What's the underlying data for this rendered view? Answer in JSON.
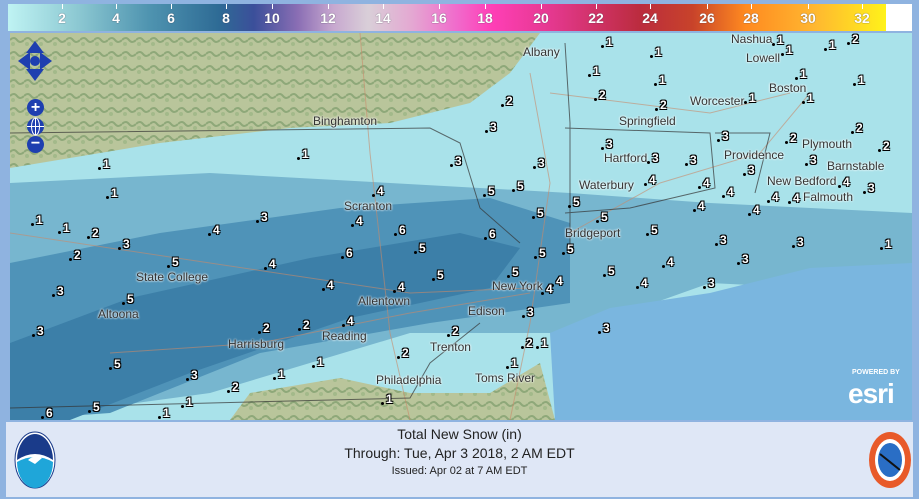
{
  "legend": {
    "unit_ticks": [
      "2",
      "4",
      "6",
      "8",
      "10",
      "12",
      "14",
      "16",
      "18",
      "20",
      "22",
      "24",
      "26",
      "28",
      "30",
      "32"
    ],
    "colors": {
      "low": "#bff3f3",
      "mid": "#2e6b95",
      "high": "#fff21a"
    }
  },
  "map_controls": {
    "zoom_in": "+",
    "zoom_out": "−",
    "pan": "pan-arrows-icon",
    "home": "globe-icon"
  },
  "cities": [
    "Albany",
    "Nashua",
    "Lowell",
    "Worcester",
    "Boston",
    "Binghamton",
    "Springfield",
    "Hartford",
    "Providence",
    "Plymouth",
    "Barnstable",
    "New Bedford",
    "Falmouth",
    "Waterbury",
    "Scranton",
    "Bridgeport",
    "State College",
    "Altoona",
    "Allentown",
    "New York",
    "Harrisburg",
    "Reading",
    "Trenton",
    "Edison",
    "Philadelphia",
    "Toms River"
  ],
  "snow_points": [
    "1",
    "1",
    "1",
    "1",
    "2",
    "1",
    "1",
    "1",
    "1",
    "1",
    "2",
    "2",
    "2",
    "1",
    "1",
    "3",
    "3",
    "2",
    "2",
    "2",
    "3",
    "3",
    "3",
    "3",
    "3",
    "3",
    "1",
    "1",
    "1",
    "3",
    "5",
    "5",
    "5",
    "4",
    "4",
    "4",
    "4",
    "4",
    "3",
    "4",
    "5",
    "5",
    "4",
    "4",
    "4",
    "4",
    "6",
    "6",
    "3",
    "4",
    "2",
    "1",
    "1",
    "3",
    "2",
    "5",
    "4",
    "6",
    "5",
    "5",
    "5",
    "5",
    "4",
    "3",
    "3",
    "1",
    "3",
    "5",
    "4",
    "5",
    "5",
    "3",
    "5",
    "4",
    "2",
    "4",
    "4",
    "3",
    "4",
    "4",
    "3",
    "2",
    "2",
    "3",
    "3",
    "5",
    "3",
    "2",
    "1",
    "1",
    "2",
    "2",
    "1",
    "1",
    "5",
    "1",
    "1",
    "6",
    "1"
  ],
  "branding": {
    "esri_powered": "POWERED BY",
    "esri": "esri",
    "left_logo": "NOAA",
    "right_logo": "NWS"
  },
  "footer": {
    "title": "Total New Snow (in)",
    "through": "Through: Tue, Apr   3 2018,   2 AM EDT",
    "issued": "Issued: Apr 02 at 7 AM EDT"
  }
}
